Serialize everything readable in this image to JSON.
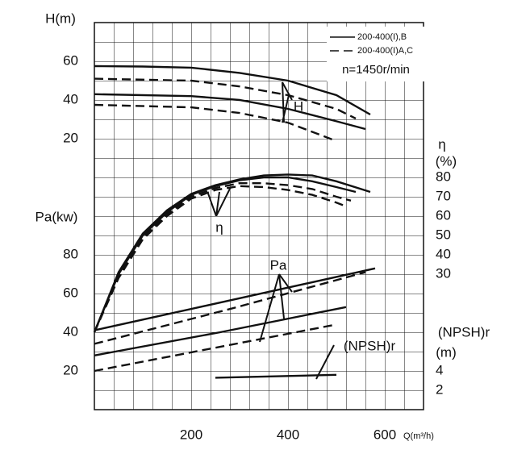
{
  "chart_data": {
    "type": "line",
    "xlabel": "Q(m³/h)",
    "xlim": [
      0,
      680
    ],
    "xticks": [
      200,
      400,
      600
    ],
    "legend": [
      {
        "name": "200-400(I),B",
        "dash": "solid"
      },
      {
        "name": "200-400(I)A,C",
        "dash": "dashed"
      }
    ],
    "note": "n=1450r/min",
    "annotations": [
      "H",
      "η",
      "Pa",
      "(NPSH)r"
    ],
    "axes": [
      {
        "label": [
          "H(m)"
        ],
        "side": "left",
        "ylim": [
          10,
          70
        ],
        "yticks": [
          20,
          40,
          60
        ],
        "series": [
          {
            "dash": "solid",
            "x": [
              0,
              100,
              200,
              300,
              400,
              500,
              570
            ],
            "values": [
              57.5,
              57.3,
              56.7,
              54,
              50,
              42.5,
              32.5
            ]
          },
          {
            "dash": "solid",
            "x": [
              0,
              200,
              300,
              400,
              500,
              560
            ],
            "values": [
              43,
              42,
              40,
              35.4,
              29,
              25
            ]
          },
          {
            "dash": "dashed",
            "x": [
              0,
              200,
              300,
              400,
              500,
              540
            ],
            "values": [
              51,
              50,
              47,
              42.5,
              35.4,
              30.4
            ]
          },
          {
            "dash": "dashed",
            "x": [
              0,
              200,
              300,
              400,
              500
            ],
            "values": [
              37.5,
              36.2,
              33.3,
              28.3,
              18.8
            ]
          }
        ]
      },
      {
        "label": [
          "Pa(kw)"
        ],
        "side": "left",
        "ylim": [
          10,
          90
        ],
        "yticks": [
          20,
          40,
          60,
          80
        ],
        "series": [
          {
            "dash": "solid",
            "x": [
              0,
              290,
              580
            ],
            "values": [
              41,
              57,
              73
            ]
          },
          {
            "dash": "dashed",
            "x": [
              0,
              280,
              560
            ],
            "values": [
              34,
              52,
              71
            ]
          },
          {
            "dash": "solid",
            "x": [
              0,
              260,
              520
            ],
            "values": [
              28,
              40,
              53
            ]
          },
          {
            "dash": "dashed",
            "x": [
              0,
              250,
              500
            ],
            "values": [
              20,
              32,
              44
            ]
          }
        ]
      },
      {
        "label": [
          "η",
          "(%)"
        ],
        "side": "right",
        "ylim": [
          0,
          85
        ],
        "yticks": [
          30,
          40,
          50,
          60,
          70,
          80
        ],
        "series": [
          {
            "dash": "solid",
            "x": [
              0,
              50,
              100,
              150,
              200,
              250,
              300,
              350,
              400,
              450,
              500,
              570
            ],
            "values": [
              0,
              31,
              51,
              63,
              71.5,
              76,
              79,
              81,
              81.5,
              81,
              78,
              72.5
            ]
          },
          {
            "dash": "solid",
            "x": [
              0,
              50,
              100,
              150,
              200,
              250,
              300,
              350,
              400,
              450,
              500,
              540
            ],
            "values": [
              0,
              30,
              50,
              62,
              71,
              75.5,
              78.5,
              80,
              80,
              78,
              75,
              72.5
            ]
          },
          {
            "dash": "dashed",
            "x": [
              0,
              50,
              100,
              150,
              200,
              250,
              300,
              350,
              400,
              450,
              500,
              530
            ],
            "values": [
              0,
              29,
              49,
              61,
              70,
              74.5,
              77,
              77,
              76,
              74,
              70,
              68
            ]
          },
          {
            "dash": "dashed",
            "x": [
              0,
              50,
              100,
              150,
              200,
              250,
              300,
              350,
              400,
              450,
              500,
              520
            ],
            "values": [
              0,
              28,
              48,
              60,
              69,
              73.5,
              75.5,
              75,
              73.5,
              71,
              67,
              65
            ]
          }
        ]
      },
      {
        "label": [
          "(NPSH)r",
          "(m)"
        ],
        "side": "right",
        "ylim": [
          0,
          8
        ],
        "yticks": [
          2,
          4
        ],
        "series": [
          {
            "dash": "solid",
            "x": [
              250,
              500
            ],
            "values": [
              3.3,
              3.6
            ]
          }
        ]
      }
    ]
  }
}
